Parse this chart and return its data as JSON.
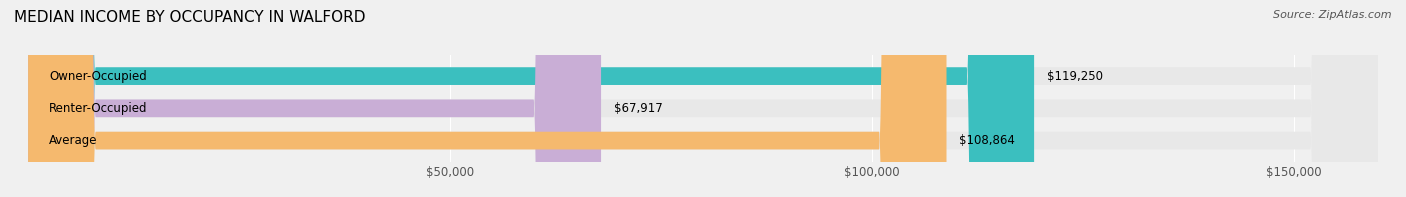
{
  "title": "MEDIAN INCOME BY OCCUPANCY IN WALFORD",
  "source": "Source: ZipAtlas.com",
  "categories": [
    "Owner-Occupied",
    "Renter-Occupied",
    "Average"
  ],
  "values": [
    119250,
    67917,
    108864
  ],
  "bar_colors": [
    "#3bbfbf",
    "#c9aed6",
    "#f5b96e"
  ],
  "bar_labels": [
    "$119,250",
    "$67,917",
    "$108,864"
  ],
  "xlim": [
    0,
    160000
  ],
  "xticks": [
    0,
    50000,
    100000,
    150000
  ],
  "xticklabels": [
    "",
    "$50,000",
    "$100,000",
    "$150,000"
  ],
  "background_color": "#f0f0f0",
  "bar_bg_color": "#e8e8e8",
  "title_fontsize": 11,
  "source_fontsize": 8,
  "label_fontsize": 8.5,
  "tick_fontsize": 8.5
}
